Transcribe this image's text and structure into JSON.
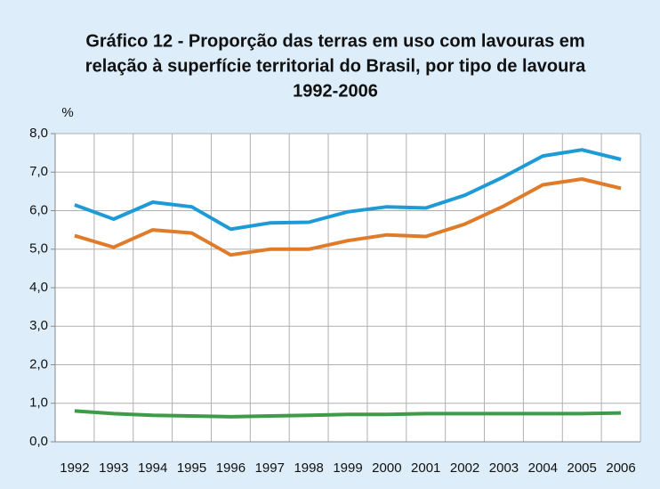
{
  "chart_data": {
    "type": "line",
    "title": [
      "Gráfico 12 - Proporção das terras em uso com  lavouras em",
      "relação à superfície territorial do Brasil, por tipo de lavoura",
      "1992-2006"
    ],
    "ylabel": "%",
    "categories": [
      "1992",
      "1993",
      "1994",
      "1995",
      "1996",
      "1997",
      "1998",
      "1999",
      "2000",
      "2001",
      "2002",
      "2003",
      "2004",
      "2005",
      "2006"
    ],
    "series": [
      {
        "color": "#1e9bd7",
        "values": [
          6.15,
          5.78,
          6.22,
          6.1,
          5.52,
          5.68,
          5.7,
          5.97,
          6.1,
          6.07,
          6.4,
          6.88,
          7.42,
          7.58,
          7.33
        ]
      },
      {
        "color": "#e07b2a",
        "values": [
          5.35,
          5.05,
          5.5,
          5.42,
          4.85,
          5.0,
          5.0,
          5.22,
          5.37,
          5.33,
          5.65,
          6.12,
          6.67,
          6.82,
          6.58
        ]
      },
      {
        "color": "#3e9b48",
        "values": [
          0.8,
          0.73,
          0.69,
          0.67,
          0.65,
          0.67,
          0.69,
          0.71,
          0.71,
          0.73,
          0.73,
          0.73,
          0.73,
          0.73,
          0.75
        ]
      }
    ],
    "ylim": [
      0,
      8
    ],
    "yticks": [
      {
        "value": 0,
        "label": "0,0"
      },
      {
        "value": 1,
        "label": "1,0"
      },
      {
        "value": 2,
        "label": "2,0"
      },
      {
        "value": 3,
        "label": "3,0"
      },
      {
        "value": 4,
        "label": "4,0"
      },
      {
        "value": 5,
        "label": "5,0"
      },
      {
        "value": 6,
        "label": "6,0"
      },
      {
        "value": 7,
        "label": "7,0"
      },
      {
        "value": 8,
        "label": "8,0"
      }
    ],
    "grid": true
  }
}
